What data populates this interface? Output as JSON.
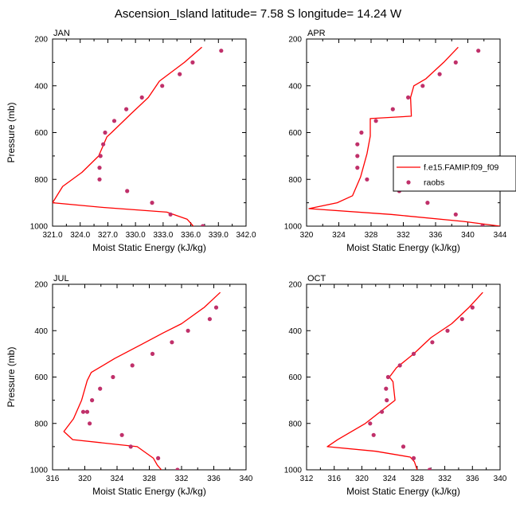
{
  "title": "Ascension_Island  latitude= 7.58 S longitude= 14.24 W",
  "legend": {
    "model_label": "f.e15.FAMIP.f09_f09",
    "obs_label": "raobs",
    "model_color": "#ff0000",
    "obs_color": "#c0306a"
  },
  "chart_data": [
    {
      "type": "line",
      "panel": "JAN",
      "xlabel": "Moist Static Energy (kJ/kg)",
      "ylabel": "Pressure (mb)",
      "xlim": [
        321.0,
        342.0
      ],
      "ylim": [
        200,
        1000
      ],
      "xticks": [
        321,
        324,
        327,
        330,
        333,
        336,
        339,
        342
      ],
      "xtick_labels": [
        "321.0",
        "324.0",
        "327.0",
        "330.0",
        "333.0",
        "336.0",
        "339.0",
        "342.0"
      ],
      "yticks": [
        200,
        400,
        600,
        800,
        1000
      ],
      "ytick_labels": [
        "200",
        "400",
        "600",
        "800",
        "1000"
      ],
      "series": [
        {
          "name": "f.e15.FAMIP.f09_f09",
          "kind": "line",
          "x": [
            337.2,
            335.3,
            332.6,
            331.4,
            329.5,
            327.4,
            326.9,
            326.0,
            324.2,
            322.1,
            321.0,
            326.5,
            333.4,
            335.6,
            336.4
          ],
          "y": [
            235,
            300,
            380,
            450,
            520,
            600,
            618,
            700,
            770,
            830,
            900,
            920,
            940,
            970,
            1005
          ]
        },
        {
          "name": "raobs",
          "kind": "scatter",
          "x": [
            339.3,
            336.2,
            334.8,
            332.9,
            330.7,
            329.0,
            327.7,
            326.7,
            326.5,
            326.2,
            326.1,
            326.1,
            329.1,
            331.8,
            333.8,
            337.3
          ],
          "y": [
            250,
            300,
            350,
            400,
            450,
            500,
            550,
            600,
            650,
            700,
            750,
            800,
            850,
            900,
            950,
            1000
          ]
        }
      ]
    },
    {
      "type": "line",
      "panel": "APR",
      "xlabel": "Moist Static Energy (kJ/kg)",
      "ylabel": "",
      "xlim": [
        320,
        344
      ],
      "ylim": [
        200,
        1000
      ],
      "xticks": [
        320,
        324,
        328,
        332,
        336,
        340,
        344
      ],
      "xtick_labels": [
        "320",
        "324",
        "328",
        "332",
        "336",
        "340",
        "344"
      ],
      "yticks": [
        200,
        400,
        600,
        800,
        1000
      ],
      "ytick_labels": [
        "200",
        "400",
        "600",
        "800",
        "1000"
      ],
      "series": [
        {
          "name": "f.e15.FAMIP.f09_f09",
          "kind": "line",
          "x": [
            338.8,
            337.0,
            334.8,
            333.3,
            332.9,
            333.0,
            327.9,
            327.9,
            327.5,
            326.7,
            325.7,
            323.8,
            320.3,
            330.5,
            339.5,
            344.0
          ],
          "y": [
            235,
            300,
            370,
            400,
            450,
            530,
            540,
            615,
            690,
            790,
            870,
            900,
            925,
            950,
            980,
            1000
          ]
        },
        {
          "name": "raobs",
          "kind": "scatter",
          "x": [
            341.3,
            338.5,
            336.5,
            334.4,
            332.6,
            330.7,
            328.6,
            326.8,
            326.3,
            326.3,
            326.3,
            327.5,
            331.5,
            335.0,
            338.5,
            341.8
          ],
          "y": [
            250,
            300,
            350,
            400,
            450,
            500,
            550,
            600,
            650,
            700,
            750,
            800,
            850,
            900,
            950,
            1000
          ]
        }
      ]
    },
    {
      "type": "line",
      "panel": "JUL",
      "xlabel": "Moist Static Energy (kJ/kg)",
      "ylabel": "Pressure (mb)",
      "xlim": [
        316,
        340
      ],
      "ylim": [
        200,
        1000
      ],
      "xticks": [
        316,
        320,
        324,
        328,
        332,
        336,
        340
      ],
      "xtick_labels": [
        "316",
        "320",
        "324",
        "328",
        "332",
        "336",
        "340"
      ],
      "yticks": [
        200,
        400,
        600,
        800,
        1000
      ],
      "ytick_labels": [
        "200",
        "400",
        "600",
        "800",
        "1000"
      ],
      "series": [
        {
          "name": "f.e15.FAMIP.f09_f09",
          "kind": "line",
          "x": [
            336.8,
            334.8,
            332.0,
            329.7,
            327.0,
            323.7,
            320.8,
            320.3,
            319.6,
            318.6,
            317.4,
            318.5,
            326.5,
            328.5,
            329.0,
            329.5
          ],
          "y": [
            235,
            300,
            370,
            410,
            460,
            520,
            580,
            615,
            700,
            780,
            835,
            870,
            900,
            950,
            980,
            1000
          ]
        },
        {
          "name": "raobs",
          "kind": "scatter",
          "x": [
            336.3,
            335.5,
            332.8,
            330.8,
            328.4,
            325.9,
            323.5,
            321.9,
            320.9,
            320.3,
            319.8,
            320.6,
            324.6,
            325.7,
            329.1,
            331.5
          ],
          "y": [
            300,
            350,
            400,
            450,
            500,
            550,
            600,
            650,
            700,
            750,
            750,
            800,
            850,
            900,
            950,
            1000
          ]
        }
      ]
    },
    {
      "type": "line",
      "panel": "OCT",
      "xlabel": "Moist Static Energy (kJ/kg)",
      "ylabel": "",
      "xlim": [
        312,
        340
      ],
      "ylim": [
        200,
        1000
      ],
      "xticks": [
        312,
        316,
        320,
        324,
        328,
        332,
        336,
        340
      ],
      "xtick_labels": [
        "312",
        "316",
        "320",
        "324",
        "328",
        "332",
        "336",
        "340"
      ],
      "yticks": [
        200,
        400,
        600,
        800,
        1000
      ],
      "ytick_labels": [
        "200",
        "400",
        "600",
        "800",
        "1000"
      ],
      "series": [
        {
          "name": "f.e15.FAMIP.f09_f09",
          "kind": "line",
          "x": [
            337.5,
            335.5,
            333.0,
            330.0,
            327.5,
            325.0,
            324.0,
            324.5,
            324.8,
            320.5,
            316.5,
            315.0,
            322.0,
            327.0,
            327.6,
            328.0
          ],
          "y": [
            235,
            300,
            370,
            430,
            500,
            560,
            600,
            620,
            700,
            800,
            870,
            900,
            920,
            945,
            965,
            1000
          ]
        },
        {
          "name": "raobs",
          "kind": "scatter",
          "x": [
            336.0,
            334.5,
            332.4,
            330.2,
            327.5,
            325.5,
            323.8,
            323.5,
            323.6,
            322.9,
            321.2,
            321.7,
            326.0,
            327.5,
            329.8
          ],
          "y": [
            300,
            350,
            400,
            450,
            500,
            550,
            600,
            650,
            700,
            750,
            800,
            850,
            900,
            950,
            1000
          ]
        }
      ]
    }
  ]
}
